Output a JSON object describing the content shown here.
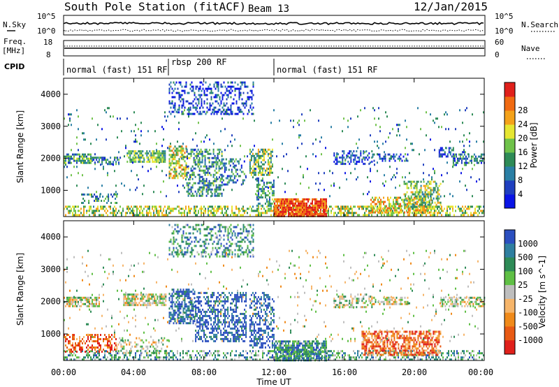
{
  "header": {
    "station": "South Pole Station (fitACF)",
    "beam": "Beam 13",
    "date": "12/Jan/2015"
  },
  "side_labels": {
    "nsky": "N.Sky",
    "nsearch": "N.Search",
    "freq": "Freq.",
    "freq_unit": "[MHz]",
    "nave": "Nave",
    "cpid": "CPID"
  },
  "noise_panel": {
    "left_ticks": [
      "10^5",
      "10^0"
    ],
    "right_ticks": [
      "10^5",
      "10^0"
    ]
  },
  "freq_panel": {
    "left_ticks": [
      "18",
      "8"
    ],
    "right_ticks": [
      "60",
      "0"
    ]
  },
  "cpid_panel": {
    "segments": [
      {
        "label": "normal (fast) 151 RF",
        "start_h": 0,
        "end_h": 6
      },
      {
        "label": "rbsp 200 RF",
        "start_h": 6,
        "end_h": 12
      },
      {
        "label": "normal (fast) 151 RF",
        "start_h": 12,
        "end_h": 24
      }
    ]
  },
  "axes": {
    "ylabel": "Slant Range [km]",
    "xlabel": "Time UT",
    "y_ticks": [
      "1000",
      "2000",
      "3000",
      "4000"
    ],
    "x_ticks": [
      "00:00",
      "04:00",
      "08:00",
      "12:00",
      "16:00",
      "20:00",
      "00:00"
    ]
  },
  "chart_data": [
    {
      "type": "heatmap",
      "title": "",
      "variable": "Power",
      "colorbar_label": "Power [dB]",
      "colorbar_ticks": [
        "4",
        "8",
        "12",
        "16",
        "20",
        "24",
        "28"
      ],
      "colorbar_colors": [
        "#0a14e6",
        "#1f3fbf",
        "#2a7fa5",
        "#2e8b57",
        "#6fc24a",
        "#e6e632",
        "#f4a21a",
        "#f06a12",
        "#e0201b"
      ],
      "xlabel": "",
      "ylabel": "Slant Range [km]",
      "xlim_hours": [
        0,
        24
      ],
      "ylim_km": [
        180,
        4500
      ],
      "echo_bands": [
        {
          "h0": 0.0,
          "h1": 24.0,
          "r0": 200,
          "r1": 520,
          "level": 0.55,
          "density": 0.5
        },
        {
          "h0": 0.0,
          "h1": 1.6,
          "r0": 1850,
          "r1": 2150,
          "level": 0.35,
          "density": 0.75
        },
        {
          "h0": 1.6,
          "h1": 3.2,
          "r0": 1800,
          "r1": 2050,
          "level": 0.3,
          "density": 0.55
        },
        {
          "h0": 3.6,
          "h1": 5.8,
          "r0": 1900,
          "r1": 2250,
          "level": 0.45,
          "density": 0.75
        },
        {
          "h0": 1.0,
          "h1": 3.0,
          "r0": 600,
          "r1": 900,
          "level": 0.35,
          "density": 0.4
        },
        {
          "h0": 6.0,
          "h1": 7.0,
          "r0": 1400,
          "r1": 2400,
          "level": 0.6,
          "density": 0.6
        },
        {
          "h0": 7.0,
          "h1": 9.0,
          "r0": 800,
          "r1": 2300,
          "level": 0.35,
          "density": 0.45
        },
        {
          "h0": 9.0,
          "h1": 10.4,
          "r0": 1200,
          "r1": 2000,
          "level": 0.3,
          "density": 0.35
        },
        {
          "h0": 6.0,
          "h1": 10.8,
          "r0": 3400,
          "r1": 4400,
          "level": 0.15,
          "density": 0.35
        },
        {
          "h0": 10.6,
          "h1": 11.9,
          "r0": 1500,
          "r1": 2300,
          "level": 0.5,
          "density": 0.6
        },
        {
          "h0": 11.0,
          "h1": 12.0,
          "r0": 500,
          "r1": 1400,
          "level": 0.35,
          "density": 0.45
        },
        {
          "h0": 12.0,
          "h1": 15.0,
          "r0": 200,
          "r1": 750,
          "level": 0.9,
          "density": 0.85
        },
        {
          "h0": 15.4,
          "h1": 17.6,
          "r0": 1850,
          "r1": 2250,
          "level": 0.15,
          "density": 0.45
        },
        {
          "h0": 17.6,
          "h1": 19.6,
          "r0": 1900,
          "r1": 2150,
          "level": 0.15,
          "density": 0.45
        },
        {
          "h0": 17.5,
          "h1": 21.0,
          "r0": 300,
          "r1": 800,
          "level": 0.65,
          "density": 0.6
        },
        {
          "h0": 19.4,
          "h1": 21.5,
          "r0": 500,
          "r1": 1300,
          "level": 0.5,
          "density": 0.5
        },
        {
          "h0": 21.4,
          "h1": 22.2,
          "r0": 2050,
          "r1": 2350,
          "level": 0.2,
          "density": 0.5
        },
        {
          "h0": 22.2,
          "h1": 24.0,
          "r0": 1800,
          "r1": 2150,
          "level": 0.3,
          "density": 0.55
        },
        {
          "h0": 0.0,
          "h1": 24.0,
          "r0": 800,
          "r1": 3600,
          "level": 0.3,
          "density": 0.03
        }
      ]
    },
    {
      "type": "heatmap",
      "title": "",
      "variable": "Velocity",
      "colorbar_label": "Velocity [m s^-1]",
      "colorbar_ticks": [
        "1000",
        "500",
        "100",
        "25",
        "-25",
        "-100",
        "-500",
        "-1000"
      ],
      "colorbar_colors": [
        "#2b4fbf",
        "#2f7fa0",
        "#2e8b57",
        "#5fbf45",
        "#bebebe",
        "#f6b56a",
        "#f08a1a",
        "#e85a14",
        "#e0201b"
      ],
      "xlabel": "Time UT",
      "ylabel": "Slant Range [km]",
      "xlim_hours": [
        0,
        24
      ],
      "ylim_km": [
        180,
        4500
      ],
      "echo_bands": [
        {
          "h0": 0.0,
          "h1": 24.0,
          "r0": 200,
          "r1": 500,
          "level": 0.3,
          "density": 0.4
        },
        {
          "h0": 0.0,
          "h1": 2.0,
          "r0": 1850,
          "r1": 2150,
          "level": 0.5,
          "density": 0.7
        },
        {
          "h0": 3.4,
          "h1": 5.8,
          "r0": 1900,
          "r1": 2250,
          "level": 0.5,
          "density": 0.7
        },
        {
          "h0": 0.0,
          "h1": 3.0,
          "r0": 450,
          "r1": 1000,
          "level": 0.85,
          "density": 0.45
        },
        {
          "h0": 3.0,
          "h1": 6.0,
          "r0": 400,
          "r1": 900,
          "level": 0.5,
          "density": 0.3
        },
        {
          "h0": 6.0,
          "h1": 7.5,
          "r0": 1300,
          "r1": 2400,
          "level": 0.1,
          "density": 0.6
        },
        {
          "h0": 7.5,
          "h1": 10.4,
          "r0": 800,
          "r1": 2300,
          "level": 0.05,
          "density": 0.45
        },
        {
          "h0": 10.6,
          "h1": 12.0,
          "r0": 600,
          "r1": 2300,
          "level": 0.05,
          "density": 0.45
        },
        {
          "h0": 6.0,
          "h1": 10.8,
          "r0": 3400,
          "r1": 4400,
          "level": 0.25,
          "density": 0.35
        },
        {
          "h0": 12.0,
          "h1": 15.0,
          "r0": 200,
          "r1": 800,
          "level": 0.25,
          "density": 0.8
        },
        {
          "h0": 15.4,
          "h1": 17.6,
          "r0": 1850,
          "r1": 2250,
          "level": 0.45,
          "density": 0.45
        },
        {
          "h0": 17.6,
          "h1": 19.6,
          "r0": 1900,
          "r1": 2150,
          "level": 0.5,
          "density": 0.45
        },
        {
          "h0": 17.0,
          "h1": 21.5,
          "r0": 350,
          "r1": 1100,
          "level": 0.8,
          "density": 0.6
        },
        {
          "h0": 21.5,
          "h1": 24.0,
          "r0": 1850,
          "r1": 2150,
          "level": 0.5,
          "density": 0.55
        },
        {
          "h0": 0.0,
          "h1": 24.0,
          "r0": 800,
          "r1": 3600,
          "level": 0.5,
          "density": 0.03
        }
      ]
    }
  ]
}
